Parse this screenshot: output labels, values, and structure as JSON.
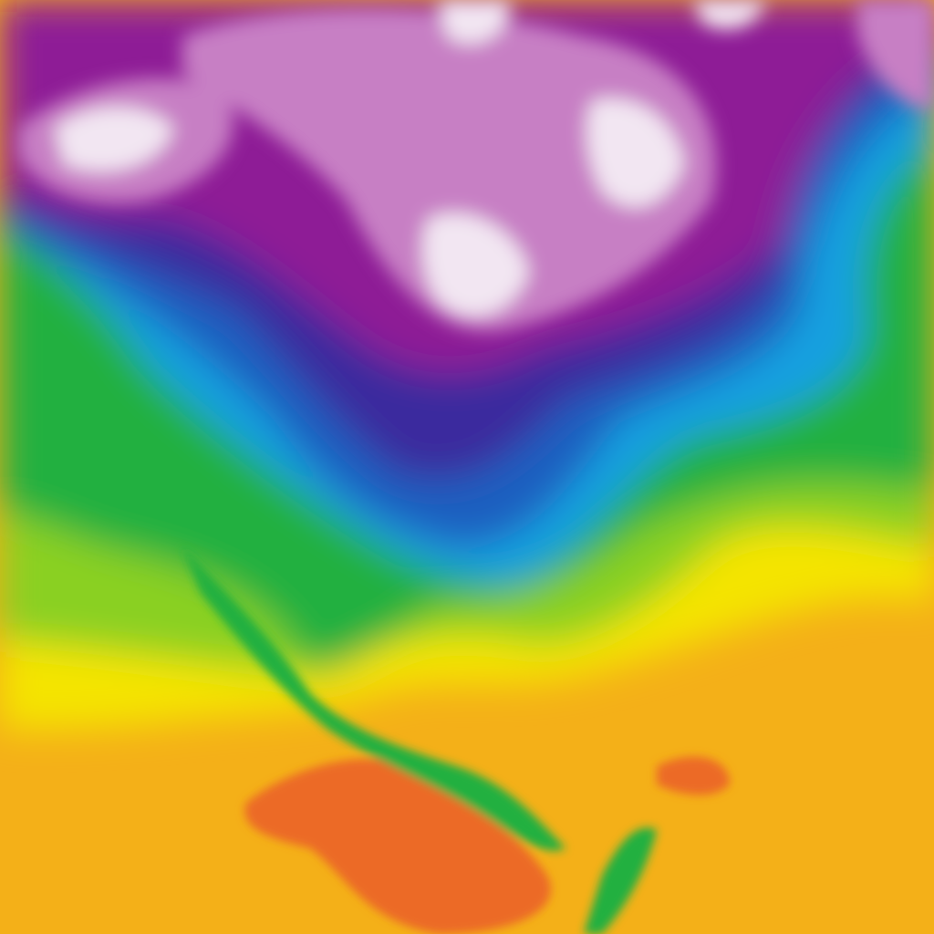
{
  "map": {
    "type": "temperature-field",
    "palette": {
      "coldest": "#f2e6f2",
      "very_cold": "#c77fc4",
      "cold": "#8e1a96",
      "cool_deep": "#3a2a9e",
      "cool": "#1f5fc0",
      "mild_cool": "#12a0e0",
      "mild": "#20b040",
      "warm_mild": "#8ad020",
      "warm": "#f4e400",
      "hot": "#f4b018",
      "hottest": "#ec6a28"
    }
  }
}
